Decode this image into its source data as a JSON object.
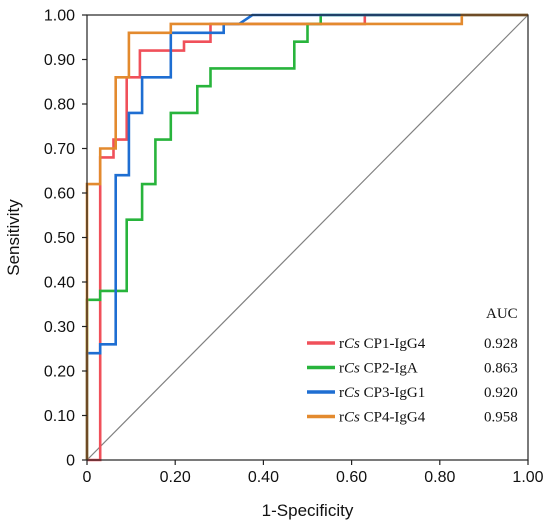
{
  "chart_data": {
    "type": "line",
    "xlabel": "1-Specificity",
    "ylabel": "Sensitivity",
    "xlim": [
      0,
      1
    ],
    "ylim": [
      0,
      1
    ],
    "xticks": [
      "0",
      "0.20",
      "0.40",
      "0.60",
      "0.80",
      "1.00"
    ],
    "yticks": [
      "0",
      "0.10",
      "0.20",
      "0.30",
      "0.40",
      "0.50",
      "0.60",
      "0.70",
      "0.80",
      "0.90",
      "1.00"
    ],
    "grid": false,
    "diagonal_reference": true,
    "diagonal_color": "#808080",
    "legend_placement": "bottom-right",
    "legend_header": "AUC",
    "series": [
      {
        "name": "rCs CP1-IgG4",
        "label_prefix": "r",
        "label_italic": "Cs",
        "label_suffix": " CP1-IgG4",
        "auc": "0.928",
        "color": "#f0505a",
        "points": [
          [
            0,
            0
          ],
          [
            0.03,
            0
          ],
          [
            0.03,
            0.68
          ],
          [
            0.06,
            0.68
          ],
          [
            0.06,
            0.72
          ],
          [
            0.09,
            0.72
          ],
          [
            0.09,
            0.86
          ],
          [
            0.12,
            0.86
          ],
          [
            0.12,
            0.92
          ],
          [
            0.19,
            0.92
          ],
          [
            0.19,
            0.92
          ],
          [
            0.22,
            0.92
          ],
          [
            0.22,
            0.94
          ],
          [
            0.28,
            0.94
          ],
          [
            0.28,
            0.98
          ],
          [
            0.63,
            0.98
          ],
          [
            0.63,
            1.0
          ],
          [
            1.0,
            1.0
          ]
        ]
      },
      {
        "name": "rCs CP2-IgA",
        "label_prefix": "r",
        "label_italic": "Cs",
        "label_suffix": " CP2-IgA",
        "auc": "0.863",
        "color": "#28b43c",
        "points": [
          [
            0,
            0
          ],
          [
            0,
            0.36
          ],
          [
            0.03,
            0.36
          ],
          [
            0.03,
            0.38
          ],
          [
            0.09,
            0.38
          ],
          [
            0.09,
            0.54
          ],
          [
            0.125,
            0.54
          ],
          [
            0.125,
            0.62
          ],
          [
            0.155,
            0.62
          ],
          [
            0.155,
            0.72
          ],
          [
            0.19,
            0.72
          ],
          [
            0.19,
            0.78
          ],
          [
            0.25,
            0.78
          ],
          [
            0.25,
            0.84
          ],
          [
            0.28,
            0.84
          ],
          [
            0.28,
            0.88
          ],
          [
            0.47,
            0.88
          ],
          [
            0.47,
            0.94
          ],
          [
            0.5,
            0.94
          ],
          [
            0.5,
            0.98
          ],
          [
            0.53,
            0.98
          ],
          [
            0.53,
            1.0
          ],
          [
            1.0,
            1.0
          ]
        ]
      },
      {
        "name": "rCs CP3-IgG1",
        "label_prefix": "r",
        "label_italic": "Cs",
        "label_suffix": " CP3-IgG1",
        "auc": "0.920",
        "color": "#1e6ed2",
        "points": [
          [
            0,
            0
          ],
          [
            0,
            0.24
          ],
          [
            0.03,
            0.24
          ],
          [
            0.03,
            0.26
          ],
          [
            0.065,
            0.26
          ],
          [
            0.065,
            0.64
          ],
          [
            0.095,
            0.64
          ],
          [
            0.095,
            0.78
          ],
          [
            0.125,
            0.78
          ],
          [
            0.125,
            0.86
          ],
          [
            0.19,
            0.86
          ],
          [
            0.19,
            0.96
          ],
          [
            0.31,
            0.96
          ],
          [
            0.31,
            0.98
          ],
          [
            0.345,
            0.98
          ],
          [
            0.375,
            1.0
          ],
          [
            1.0,
            1.0
          ]
        ]
      },
      {
        "name": "rCs CP4-IgG4",
        "label_prefix": "r",
        "label_italic": "Cs",
        "label_suffix": " CP4-IgG4",
        "auc": "0.958",
        "color": "#e38a2e",
        "points": [
          [
            0,
            0
          ],
          [
            0,
            0.62
          ],
          [
            0.03,
            0.62
          ],
          [
            0.03,
            0.7
          ],
          [
            0.065,
            0.7
          ],
          [
            0.065,
            0.86
          ],
          [
            0.095,
            0.86
          ],
          [
            0.095,
            0.96
          ],
          [
            0.19,
            0.96
          ],
          [
            0.19,
            0.98
          ],
          [
            0.85,
            0.98
          ],
          [
            0.85,
            1.0
          ],
          [
            1.0,
            1.0
          ]
        ]
      }
    ]
  }
}
